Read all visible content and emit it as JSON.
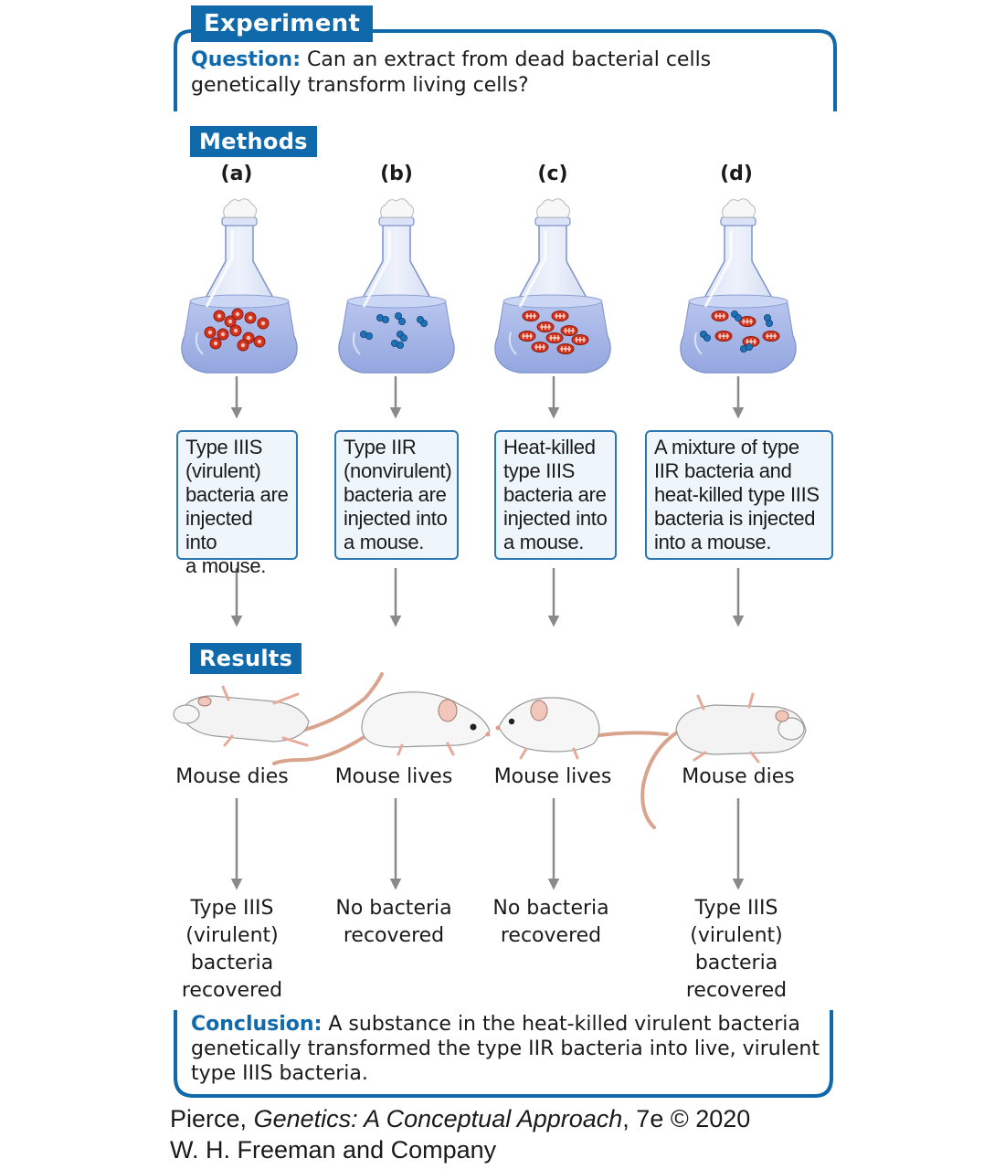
{
  "experiment_label": "Experiment",
  "question": {
    "label": "Question:",
    "text": "Can an extract from dead bacterial cells genetically transform living cells?"
  },
  "methods_label": "Methods",
  "results_label": "Results",
  "panels": [
    {
      "id": "(a)",
      "description": [
        "Type IIIS",
        "(virulent)",
        "bacteria are",
        "injected into",
        "a mouse."
      ],
      "outcome": "Mouse dies",
      "recovered": [
        "Type IIIS",
        "(virulent)",
        "bacteria",
        "recovered"
      ]
    },
    {
      "id": "(b)",
      "description": [
        "Type IIR",
        "(nonvirulent)",
        "bacteria are",
        "injected into",
        "a mouse."
      ],
      "outcome": "Mouse lives",
      "recovered": [
        "No bacteria",
        "recovered"
      ]
    },
    {
      "id": "(c)",
      "description": [
        "Heat-killed",
        "type IIIS",
        "bacteria are",
        "injected into",
        "a mouse."
      ],
      "outcome": "Mouse lives",
      "recovered": [
        "No bacteria",
        "recovered"
      ]
    },
    {
      "id": "(d)",
      "description": [
        "A mixture of type",
        "IIR bacteria and",
        "heat-killed type IIIS",
        "bacteria is injected",
        "into a mouse."
      ],
      "outcome": "Mouse dies",
      "recovered": [
        "Type IIIS",
        "(virulent)",
        "bacteria",
        "recovered"
      ]
    }
  ],
  "conclusion": {
    "label": "Conclusion:",
    "text": "A substance in the heat-killed virulent bacteria genetically transformed the type IIR bacteria into live, virulent type IIIS bacteria."
  },
  "credit": {
    "author": "Pierce,",
    "book_title": "Genetics: A Conceptual Approach",
    "edition": ", 7e © 2020",
    "publisher": "W. H. Freeman and Company"
  },
  "colors": {
    "accent_blue": "#0f69aa",
    "box_fill": "#eef6fb",
    "flask_liquid": "#a9b8e6",
    "virulent_red": "#d2331f",
    "nonvirulent_blue": "#1f72b8",
    "arrow_gray": "#8a8a8a"
  }
}
